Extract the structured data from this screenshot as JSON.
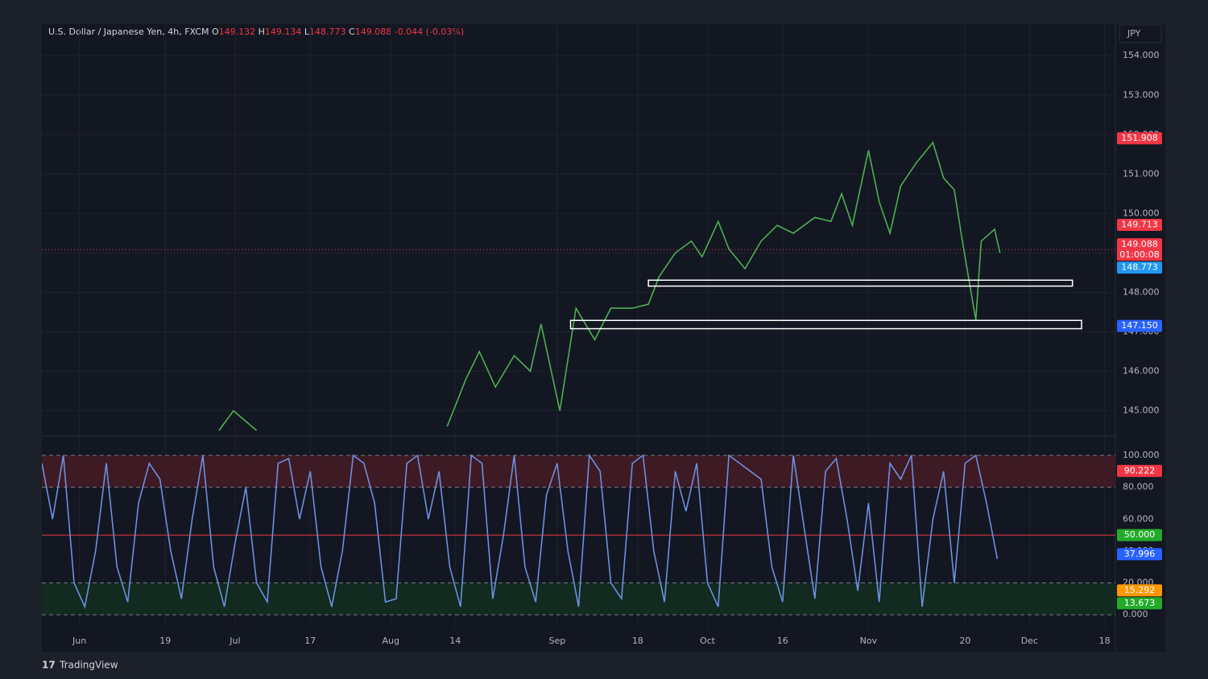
{
  "header": {
    "symbol": "U.S. Dollar / Japanese Yen, 4h, FXCM",
    "ohlc": [
      {
        "key": "O",
        "value": "149.132"
      },
      {
        "key": "H",
        "value": "149.134"
      },
      {
        "key": "L",
        "value": "148.773"
      },
      {
        "key": "C",
        "value": "149.088"
      }
    ],
    "change": "-0.044 (-0.03%)",
    "currency": "JPY"
  },
  "footer": {
    "brand": "TradingView"
  },
  "chart_data": [
    {
      "type": "line",
      "color": "#4caf50",
      "x": [
        33,
        35.7,
        40,
        41,
        75.5,
        79,
        81.5,
        84.5,
        88,
        91,
        93,
        96.5,
        99.5,
        103,
        106,
        110,
        113,
        115,
        118,
        121,
        123,
        126,
        128,
        131,
        134,
        137,
        140,
        144,
        147,
        149,
        151,
        154,
        156,
        158,
        160,
        163,
        166,
        168,
        170,
        171.5,
        174,
        175,
        177.5,
        178.5
      ],
      "values": [
        144.5,
        145.0,
        144.5,
        null,
        144.6,
        145.8,
        146.5,
        145.6,
        146.4,
        146.0,
        147.2,
        145.0,
        147.6,
        146.8,
        147.6,
        147.6,
        147.7,
        148.4,
        149.0,
        149.3,
        148.9,
        149.8,
        149.1,
        148.6,
        149.3,
        149.7,
        149.5,
        149.9,
        149.8,
        150.5,
        149.7,
        151.6,
        150.3,
        149.5,
        150.7,
        151.3,
        151.8,
        150.9,
        150.6,
        149.3,
        147.3,
        149.3,
        149.6,
        149.0
      ],
      "xlim": [
        0,
        200
      ],
      "ylim": [
        144.4,
        154.8
      ],
      "yticks": [
        {
          "value": 145,
          "label": "145.000"
        },
        {
          "value": 146,
          "label": "146.000"
        },
        {
          "value": 147,
          "label": "147.000"
        },
        {
          "value": 148,
          "label": "148.000"
        },
        {
          "value": 149,
          "label": "149.000"
        },
        {
          "value": 150,
          "label": "150.000"
        },
        {
          "value": 151,
          "label": "151.000"
        },
        {
          "value": 152,
          "label": "152.000"
        },
        {
          "value": 153,
          "label": "153.000"
        },
        {
          "value": 154,
          "label": "154.000"
        }
      ],
      "grid": true,
      "price_labels": [
        {
          "value": 151.908,
          "color": "#f23645"
        },
        {
          "value": 149.713,
          "color": "#f23645"
        },
        {
          "value": 149.088,
          "color": "#f23645",
          "countdown": "01:00:08"
        },
        {
          "value": 148.773,
          "color": "#2196f3"
        },
        {
          "value": 147.15,
          "label": "147.150",
          "color": "#2962ff"
        }
      ],
      "zones": [
        {
          "x": [
            113,
            192
          ],
          "y": [
            148.16,
            148.31
          ]
        },
        {
          "x": [
            98.5,
            193.7
          ],
          "y": [
            147.08,
            147.29
          ]
        }
      ],
      "zone_color": "#ffffff"
    },
    {
      "type": "line",
      "color": "#6b8fe0",
      "x": [
        0,
        2,
        4,
        6,
        8,
        10,
        12,
        14,
        16,
        18,
        20,
        22,
        24,
        26,
        28,
        30,
        32,
        34,
        36,
        38,
        40,
        42,
        44,
        46,
        48,
        50,
        52,
        54,
        56,
        58,
        60,
        62,
        64,
        66,
        68,
        70,
        72,
        74,
        76,
        78,
        80,
        82,
        84,
        86,
        88,
        90,
        92,
        94,
        96,
        98,
        100,
        102,
        104,
        106,
        108,
        110,
        112,
        114,
        116,
        118,
        120,
        122,
        124,
        126,
        128,
        130,
        132,
        134,
        136,
        138,
        140,
        142,
        144,
        146,
        148,
        150,
        152,
        154,
        156,
        158,
        160,
        162,
        164,
        166,
        168,
        170,
        172,
        174,
        176,
        178
      ],
      "values": [
        95,
        60,
        100,
        20,
        5,
        40,
        95,
        30,
        8,
        70,
        95,
        85,
        40,
        10,
        60,
        100,
        30,
        5,
        45,
        80,
        20,
        8,
        95,
        98,
        60,
        90,
        30,
        5,
        40,
        100,
        95,
        70,
        8,
        10,
        95,
        100,
        60,
        90,
        30,
        5,
        100,
        95,
        10,
        50,
        100,
        30,
        8,
        75,
        95,
        40,
        5,
        100,
        90,
        20,
        10,
        95,
        100,
        40,
        8,
        90,
        65,
        95,
        20,
        5,
        100,
        95,
        90,
        85,
        30,
        8,
        100,
        55,
        10,
        90,
        98,
        60,
        15,
        70,
        8,
        95,
        85,
        100,
        5,
        60,
        90,
        20,
        95,
        100,
        70,
        35
      ],
      "xlim": [
        0,
        200
      ],
      "ylim": [
        -8,
        110.6
      ],
      "yticks": [
        {
          "value": 0,
          "label": "0.000"
        },
        {
          "value": 20,
          "label": "20.000"
        },
        {
          "value": 40,
          "label": "40.000"
        },
        {
          "value": 60,
          "label": "60.000"
        },
        {
          "value": 80,
          "label": "80.000"
        },
        {
          "value": 100,
          "label": "100.000"
        }
      ],
      "xticks": [
        {
          "value": 7,
          "label": "Jun"
        },
        {
          "value": 23,
          "label": "19"
        },
        {
          "value": 36,
          "label": "Jul"
        },
        {
          "value": 50,
          "label": "17"
        },
        {
          "value": 65,
          "label": "Aug"
        },
        {
          "value": 77,
          "label": "14"
        },
        {
          "value": 96,
          "label": "Sep"
        },
        {
          "value": 111,
          "label": "18"
        },
        {
          "value": 124,
          "label": "Oct"
        },
        {
          "value": 138,
          "label": "16"
        },
        {
          "value": 154,
          "label": "Nov"
        },
        {
          "value": 172,
          "label": "20"
        },
        {
          "value": 184,
          "label": "Dec"
        },
        {
          "value": 198,
          "label": "18"
        }
      ],
      "bands": [
        {
          "range": [
            80,
            100
          ],
          "color": "#4a1c26"
        },
        {
          "range": [
            0,
            20
          ],
          "color": "#13301f"
        }
      ],
      "midline": {
        "value": 50,
        "color": "#f23645"
      },
      "price_labels": [
        {
          "value": 90.222,
          "color": "#f23645"
        },
        {
          "value": 50,
          "label": "50.000",
          "color": "#22ab2b"
        },
        {
          "value": 37.996,
          "color": "#2962ff"
        },
        {
          "value": 15.292,
          "color": "#ff9800"
        },
        {
          "value": 13.673,
          "color": "#22ab2b"
        }
      ]
    }
  ]
}
